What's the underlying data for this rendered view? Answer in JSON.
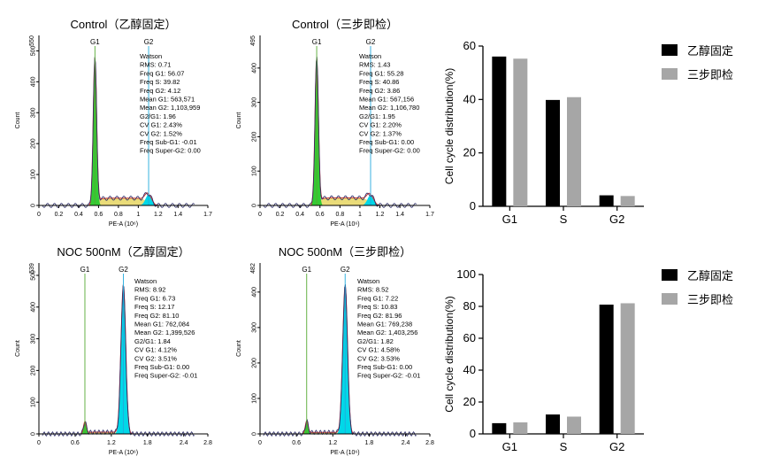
{
  "colors": {
    "g1_fill": "#33cc33",
    "g2_fill": "#00d8e8",
    "s_fill": "#e8d86a",
    "trace": "#2a2a66",
    "fit": "#cc3333",
    "marker": "#55aa33",
    "marker_g2": "#22aadd",
    "bar_ethanol": "#000000",
    "bar_sanbu": "#a6a6a6",
    "axis": "#000000"
  },
  "chart_data": [
    {
      "type": "histogram",
      "title": "Control（乙醇固定）",
      "xlabel": "PE-A",
      "xunit": "(10⁶)",
      "ylabel": "Count",
      "xlim": [
        0,
        1.7
      ],
      "xticks": [
        "0",
        "0.2",
        "0.4",
        "0.6",
        "0.8",
        "1",
        "1.2",
        "1.4",
        "1.7"
      ],
      "yticks": [
        "0",
        "100",
        "200",
        "300",
        "400",
        "500"
      ],
      "ymax_label": "550",
      "markers": [
        "G1",
        "G2"
      ],
      "g1_mean": 563571,
      "g2_mean": 1103959,
      "freq_g1": 56.07,
      "freq_s": 39.82,
      "freq_g2": 4.12,
      "stats": [
        "Watson",
        "RMS: 0.71",
        "Freq G1: 56.07",
        "Freq S: 39.82",
        "Freq G2: 4.12",
        "Mean G1: 563,571",
        "Mean G2: 1,103,959",
        "G2/G1: 1.96",
        "CV G1: 2.43%",
        "CV G2: 1.52%",
        "Freq Sub-G1: -0.01",
        "Freq Super-G2: 0.00"
      ]
    },
    {
      "type": "histogram",
      "title": "Control（三步即检）",
      "xlabel": "PE-A",
      "xunit": "(10⁶)",
      "ylabel": "Count",
      "xlim": [
        0,
        1.7
      ],
      "xticks": [
        "0",
        "0.2",
        "0.4",
        "0.6",
        "0.8",
        "1",
        "1.2",
        "1.4",
        "1.7"
      ],
      "yticks": [
        "0",
        "100",
        "200",
        "300",
        "400"
      ],
      "ymax_label": "495",
      "markers": [
        "G1",
        "G2"
      ],
      "g1_mean": 567156,
      "g2_mean": 1106780,
      "freq_g1": 55.28,
      "freq_s": 40.86,
      "freq_g2": 3.86,
      "stats": [
        "Watson",
        "RMS: 1.43",
        "Freq G1: 55.28",
        "Freq S: 40.86",
        "Freq G2: 3.86",
        "Mean G1: 567,156",
        "Mean G2: 1,106,780",
        "G2/G1: 1.95",
        "CV G1: 2.20%",
        "CV G2: 1.37%",
        "Freq Sub-G1: 0.00",
        "Freq Super-G2: 0.00"
      ]
    },
    {
      "type": "bar",
      "title": "",
      "categories": [
        "G1",
        "S",
        "G2"
      ],
      "series": [
        {
          "name": "乙醇固定",
          "values": [
            56.07,
            39.82,
            4.12
          ]
        },
        {
          "name": "三步即检",
          "values": [
            55.28,
            40.86,
            3.86
          ]
        }
      ],
      "ylabel": "Cell cycle distribution(%)",
      "ylim": [
        0,
        60
      ],
      "yticks": [
        "0",
        "20",
        "40",
        "60"
      ],
      "legend": "right"
    },
    {
      "type": "histogram",
      "title": "NOC 500nM（乙醇固定）",
      "xlabel": "PE-A",
      "xunit": "(10⁶)",
      "ylabel": "Count",
      "xlim": [
        0,
        2.8
      ],
      "xticks": [
        "0",
        "0.6",
        "1.2",
        "1.8",
        "2.4",
        "2.8"
      ],
      "yticks": [
        "0",
        "100",
        "200",
        "300",
        "400",
        "500"
      ],
      "ymax_label": "539",
      "markers": [
        "G1",
        "G2"
      ],
      "g1_mean": 762084,
      "g2_mean": 1399526,
      "freq_g1": 6.73,
      "freq_s": 12.17,
      "freq_g2": 81.1,
      "stats": [
        "Watson",
        "RMS: 8.92",
        "Freq G1: 6.73",
        "Freq S: 12.17",
        "Freq G2: 81.10",
        "Mean G1: 762,084",
        "Mean G2: 1,399,526",
        "G2/G1: 1.84",
        "CV G1: 4.12%",
        "CV G2: 3.51%",
        "Freq Sub-G1: 0.00",
        "Freq Super-G2: -0.01"
      ]
    },
    {
      "type": "histogram",
      "title": "NOC 500nM（三步即检）",
      "xlabel": "PE-A",
      "xunit": "(10⁶)",
      "ylabel": "Count",
      "xlim": [
        0,
        2.8
      ],
      "xticks": [
        "0",
        "0.6",
        "1.2",
        "1.8",
        "2.4",
        "2.8"
      ],
      "yticks": [
        "0",
        "100",
        "200",
        "300",
        "400"
      ],
      "ymax_label": "482",
      "markers": [
        "G1",
        "G2"
      ],
      "g1_mean": 769238,
      "g2_mean": 1403256,
      "freq_g1": 7.22,
      "freq_s": 10.83,
      "freq_g2": 81.96,
      "stats": [
        "Watson",
        "RMS: 8.52",
        "Freq G1: 7.22",
        "Freq S: 10.83",
        "Freq G2: 81.96",
        "Mean G1: 769,238",
        "Mean G2: 1,403,256",
        "G2/G1: 1.82",
        "CV G1: 4.58%",
        "CV G2: 3.53%",
        "Freq Sub-G1: 0.00",
        "Freq Super-G2: -0.01"
      ]
    },
    {
      "type": "bar",
      "title": "",
      "categories": [
        "G1",
        "S",
        "G2"
      ],
      "series": [
        {
          "name": "乙醇固定",
          "values": [
            6.73,
            12.17,
            81.1
          ]
        },
        {
          "name": "三步即检",
          "values": [
            7.22,
            10.83,
            81.96
          ]
        }
      ],
      "ylabel": "Cell cycle distribution(%)",
      "ylim": [
        0,
        100
      ],
      "yticks": [
        "0",
        "20",
        "40",
        "60",
        "80",
        "100"
      ],
      "legend": "right"
    }
  ]
}
